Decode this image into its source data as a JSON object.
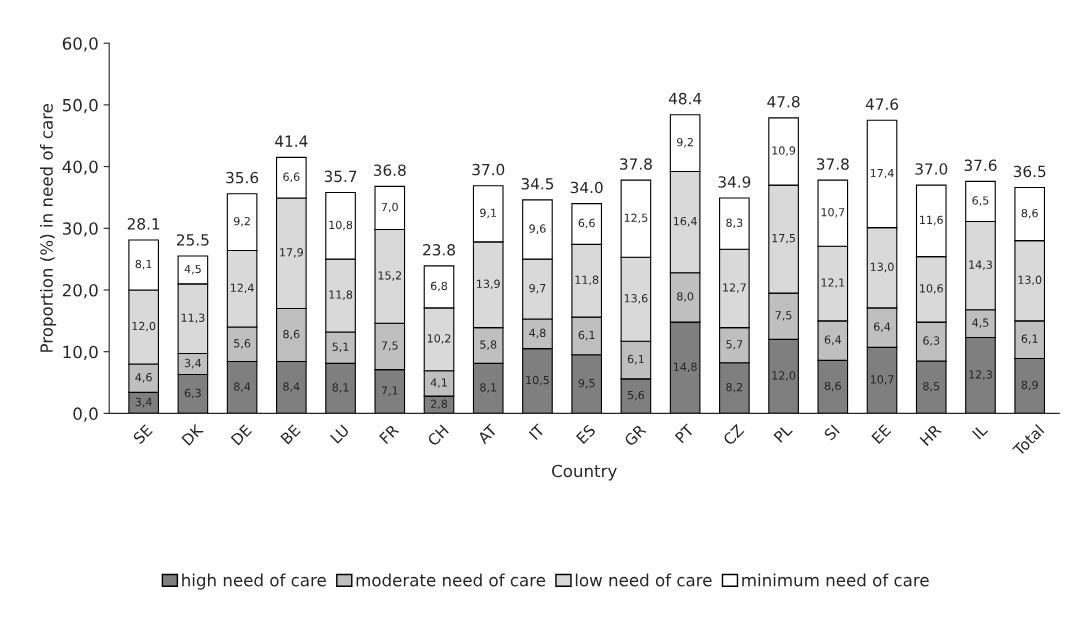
{
  "chart_data": {
    "type": "bar",
    "stacked": true,
    "xlabel": "Country",
    "ylabel": "Proportion (%) in need of care",
    "categories": [
      "SE",
      "DK",
      "DE",
      "BE",
      "LU",
      "FR",
      "CH",
      "AT",
      "IT",
      "ES",
      "GR",
      "PT",
      "CZ",
      "PL",
      "SI",
      "EE",
      "HR",
      "IL",
      "Total"
    ],
    "series": [
      {
        "name": "high need of care",
        "color": "#7f7f7f",
        "values": [
          3.4,
          6.3,
          8.4,
          8.4,
          8.1,
          7.1,
          2.8,
          8.1,
          10.5,
          9.5,
          5.6,
          14.8,
          8.2,
          12.0,
          8.6,
          10.7,
          8.5,
          12.3,
          8.9
        ],
        "value_labels": [
          "3,4",
          "6,3",
          "8,4",
          "8,4",
          "8,1",
          "7,1",
          "2,8",
          "8,1",
          "10,5",
          "9,5",
          "5,6",
          "14,8",
          "8,2",
          "12,0",
          "8,6",
          "10,7",
          "8,5",
          "12,3",
          "8,9"
        ]
      },
      {
        "name": "moderate need of care",
        "color": "#bfbfbf",
        "values": [
          4.6,
          3.4,
          5.6,
          8.6,
          5.1,
          7.5,
          4.1,
          5.8,
          4.8,
          6.1,
          6.1,
          8.0,
          5.7,
          7.5,
          6.4,
          6.4,
          6.3,
          4.5,
          6.1
        ],
        "value_labels": [
          "4,6",
          "3,4",
          "5,6",
          "8,6",
          "5,1",
          "7,5",
          "4,1",
          "5,8",
          "4,8",
          "6,1",
          "6,1",
          "8,0",
          "5,7",
          "7,5",
          "6,4",
          "6,4",
          "6,3",
          "4,5",
          "6,1"
        ]
      },
      {
        "name": "low need of care",
        "color": "#d9d9d9",
        "values": [
          12.0,
          11.3,
          12.4,
          17.9,
          11.8,
          15.2,
          10.2,
          13.9,
          9.7,
          11.8,
          13.6,
          16.4,
          12.7,
          17.5,
          12.1,
          13.0,
          10.6,
          14.3,
          13.0
        ],
        "value_labels": [
          "12,0",
          "11,3",
          "12,4",
          "17,9",
          "11,8",
          "15,2",
          "10,2",
          "13,9",
          "9,7",
          "11,8",
          "13,6",
          "16,4",
          "12,7",
          "17,5",
          "12,1",
          "13,0",
          "10,6",
          "14,3",
          "13,0"
        ]
      },
      {
        "name": "minimum need of care",
        "color": "#ffffff",
        "values": [
          8.1,
          4.5,
          9.2,
          6.6,
          10.8,
          7.0,
          6.8,
          9.1,
          9.6,
          6.6,
          12.5,
          9.2,
          8.3,
          10.9,
          10.7,
          17.4,
          11.6,
          6.5,
          8.6
        ],
        "value_labels": [
          "8,1",
          "4,5",
          "9,2",
          "6,6",
          "10,8",
          "7,0",
          "6,8",
          "9,1",
          "9,6",
          "6,6",
          "12,5",
          "9,2",
          "8,3",
          "10,9",
          "10,7",
          "17,4",
          "11,6",
          "6,5",
          "8,6"
        ]
      }
    ],
    "totals": [
      "28.1",
      "25.5",
      "35.6",
      "41.4",
      "35.7",
      "36.8",
      "23.8",
      "37.0",
      "34.5",
      "34.0",
      "37.8",
      "48.4",
      "34.9",
      "47.8",
      "37.8",
      "47.6",
      "37.0",
      "37.6",
      "36.5"
    ],
    "ylim": [
      0,
      60
    ],
    "yticks": [
      {
        "value": 0,
        "label": "0,0"
      },
      {
        "value": 10,
        "label": "10,0"
      },
      {
        "value": 20,
        "label": "20,0"
      },
      {
        "value": 30,
        "label": "30,0"
      },
      {
        "value": 40,
        "label": "40,0"
      },
      {
        "value": 50,
        "label": "50,0"
      },
      {
        "value": 60,
        "label": "60,0"
      }
    ],
    "grid": false,
    "legend": "bottom"
  }
}
